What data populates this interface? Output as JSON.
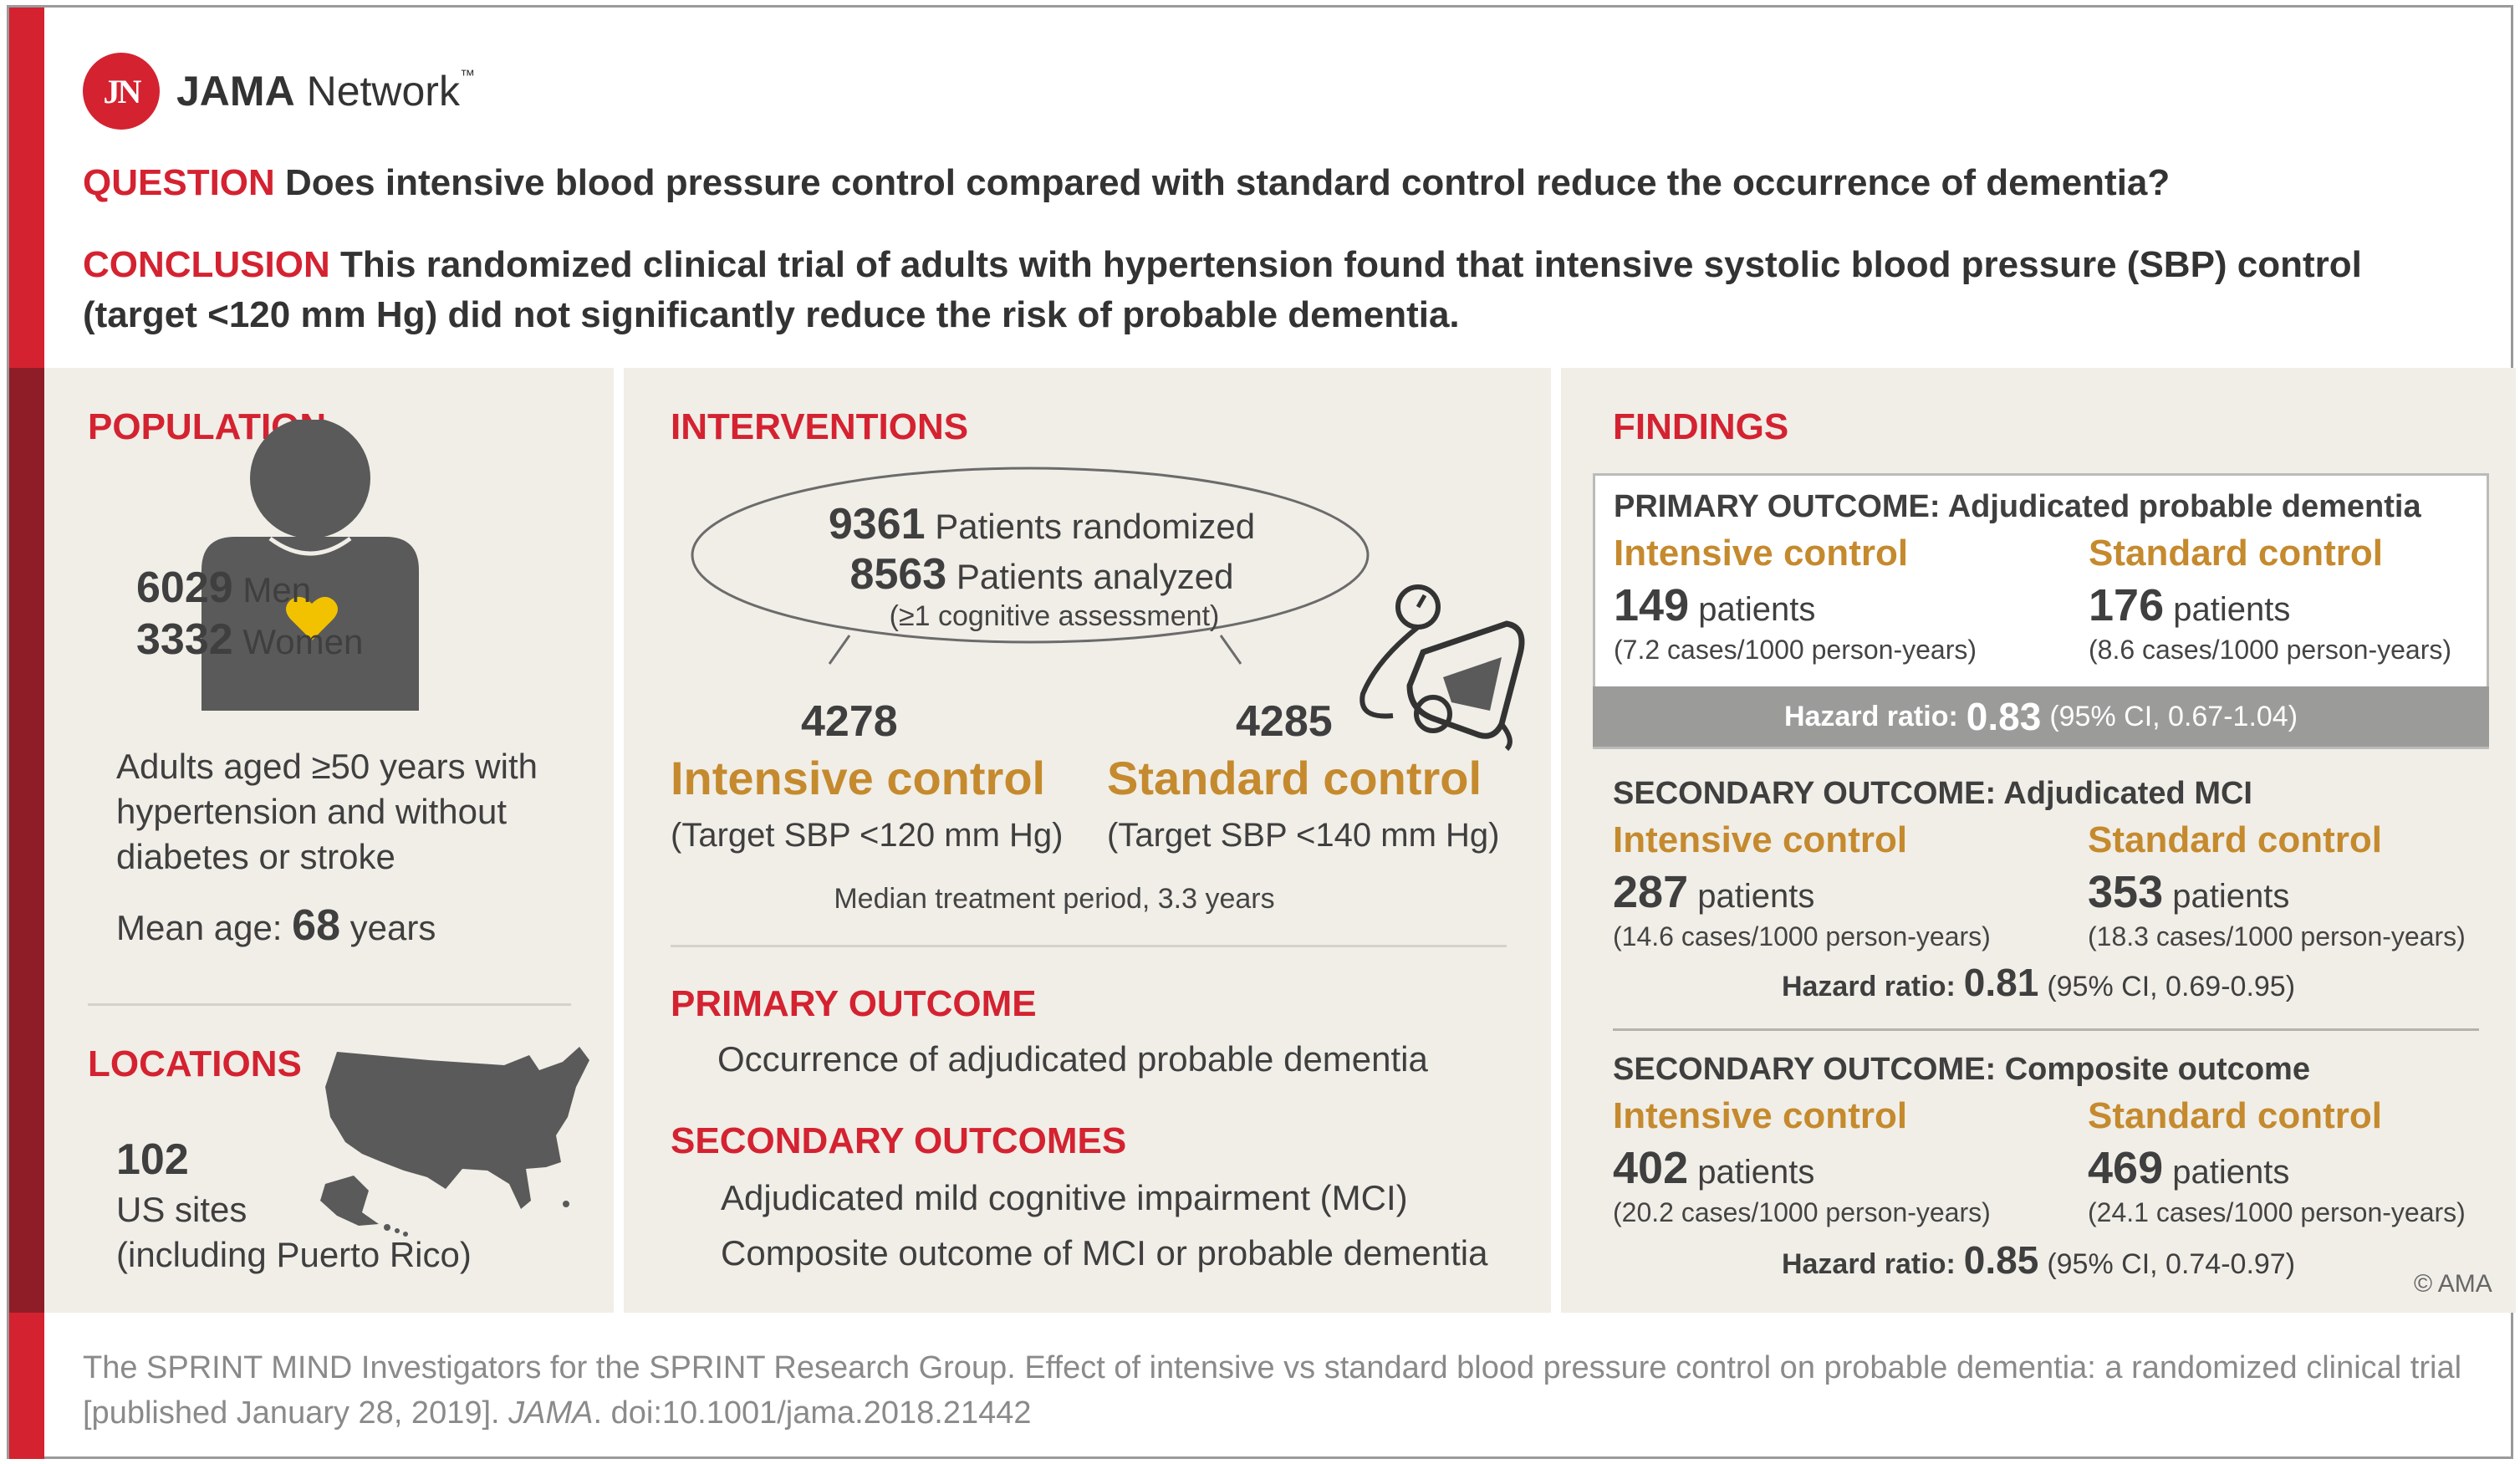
{
  "brand": {
    "badge": "JN",
    "name_bold": "JAMA",
    "name_rest": " Network",
    "tm": "™",
    "color": "#d42231"
  },
  "question": {
    "label": "QUESTION",
    "text": "Does intensive blood pressure control compared with standard control reduce the occurrence of dementia?"
  },
  "conclusion": {
    "label": "CONCLUSION",
    "text": "This randomized clinical trial of adults with hypertension found that intensive systolic blood pressure (SBP) control (target <120 mm Hg) did not significantly reduce the risk of probable dementia."
  },
  "population": {
    "heading": "POPULATION",
    "men_num": "6029",
    "men_label": "Men",
    "women_num": "3332",
    "women_label": "Women",
    "description": "Adults aged ≥50 years with hypertension and without diabetes or stroke",
    "mean_age_label": "Mean age:",
    "mean_age_value": "68",
    "mean_age_unit": "years"
  },
  "locations": {
    "heading": "LOCATIONS",
    "count": "102",
    "line1": "US sites",
    "line2": "(including Puerto Rico)"
  },
  "interventions": {
    "heading": "INTERVENTIONS",
    "randomized_num": "9361",
    "randomized_label": "Patients randomized",
    "analyzed_num": "8563",
    "analyzed_label": "Patients analyzed",
    "analyzed_note": "(≥1 cognitive assessment)",
    "intensive_n": "4278",
    "intensive_label": "Intensive control",
    "intensive_target": "(Target SBP <120 mm Hg)",
    "standard_n": "4285",
    "standard_label": "Standard control",
    "standard_target": "(Target SBP <140 mm Hg)",
    "median_period": "Median treatment period, 3.3 years"
  },
  "outcomes": {
    "primary_heading": "PRIMARY OUTCOME",
    "primary_text": "Occurrence of adjudicated probable dementia",
    "secondary_heading": "SECONDARY OUTCOMES",
    "secondary_items": [
      "Adjudicated mild cognitive impairment (MCI)",
      "Composite outcome of MCI or probable dementia"
    ]
  },
  "findings": {
    "heading": "FINDINGS",
    "blocks": [
      {
        "title_bold": "PRIMARY OUTCOME:",
        "title_rest": "Adjudicated probable dementia",
        "left_label": "Intensive control",
        "left_n": "149",
        "left_unit": "patients",
        "left_rate": "(7.2 cases/1000 person-years)",
        "right_label": "Standard control",
        "right_n": "176",
        "right_unit": "patients",
        "right_rate": "(8.6 cases/1000 person-years)",
        "hr_label": "Hazard ratio:",
        "hr_value": "0.83",
        "hr_ci": "(95% CI, 0.67-1.04)"
      },
      {
        "title_bold": "SECONDARY OUTCOME:",
        "title_rest": "Adjudicated MCI",
        "left_label": "Intensive control",
        "left_n": "287",
        "left_unit": "patients",
        "left_rate": "(14.6 cases/1000 person-years)",
        "right_label": "Standard control",
        "right_n": "353",
        "right_unit": "patients",
        "right_rate": "(18.3 cases/1000 person-years)",
        "hr_label": "Hazard ratio:",
        "hr_value": "0.81",
        "hr_ci": "(95% CI, 0.69-0.95)"
      },
      {
        "title_bold": "SECONDARY OUTCOME:",
        "title_rest": "Composite outcome",
        "left_label": "Intensive control",
        "left_n": "402",
        "left_unit": "patients",
        "left_rate": "(20.2 cases/1000 person-years)",
        "right_label": "Standard control",
        "right_n": "469",
        "right_unit": "patients",
        "right_rate": "(24.1 cases/1000 person-years)",
        "hr_label": "Hazard ratio:",
        "hr_value": "0.85",
        "hr_ci": "(95% CI, 0.74-0.97)"
      }
    ]
  },
  "copyright": "© AMA",
  "citation": {
    "part1": "The SPRINT MIND Investigators for the SPRINT Research Group. Effect of intensive vs standard blood pressure control on probable dementia: a randomized clinical trial [published January 28, 2019]. ",
    "journal": "JAMA",
    "part2": ". doi:10.1001/jama.2018.21442"
  },
  "colors": {
    "red": "#d42231",
    "dark_red": "#8e1d27",
    "gold": "#c58a2e",
    "panel_bg": "#f0eee7",
    "heart": "#f2c200",
    "icon_gray": "#5a5a5a"
  },
  "icons": [
    "person-icon",
    "heart-icon",
    "us-map-icon",
    "blood-pressure-cuff-icon"
  ]
}
